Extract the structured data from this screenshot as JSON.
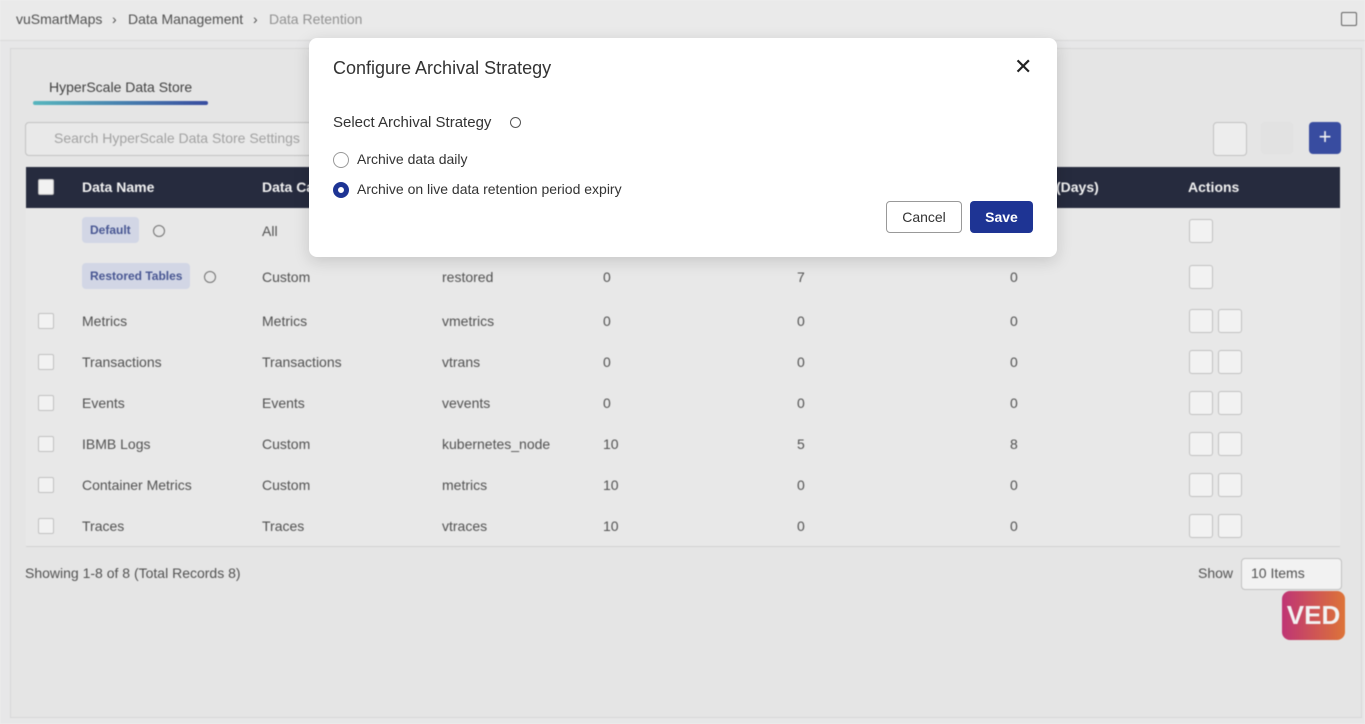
{
  "breadcrumb": [
    "vuSmartMaps",
    "Data Management",
    "Data Retention"
  ],
  "tab": "HyperScale Data Store",
  "search_placeholder": "Search HyperScale Data Store Settings",
  "table": {
    "headers": [
      "Data Name",
      "Data Ca",
      "(Days)",
      "Actions"
    ],
    "rows": [
      [
        "Default",
        "All"
      ],
      [
        "Restored Tables",
        "Custom",
        "restored",
        0,
        7,
        0
      ],
      [
        "Metrics",
        "Metrics",
        "vmetrics",
        0,
        0,
        0
      ],
      [
        "Transactions",
        "Transactions",
        "vtrans",
        0,
        0,
        0
      ],
      [
        "Events",
        "Events",
        "vevents",
        0,
        0,
        0
      ],
      [
        "IBMB Logs",
        "Custom",
        "kubernetes_node",
        10,
        5,
        8
      ],
      [
        "Container Metrics",
        "Custom",
        "metrics",
        10,
        0,
        0
      ],
      [
        "Traces",
        "Traces",
        "vtraces",
        10,
        0,
        0
      ]
    ],
    "badge_rows": 2
  },
  "footer": {
    "summary": "Showing 1-8 of 8 (Total Records 8)",
    "show_label": "Show",
    "page_size": "10 Items"
  },
  "logo_text": "VED",
  "modal": {
    "title": "Configure Archival Strategy",
    "label": "Select Archival Strategy",
    "options": [
      "Archive data daily",
      "Archive on live data retention period expiry"
    ],
    "selected": 1,
    "cancel": "Cancel",
    "save": "Save"
  }
}
